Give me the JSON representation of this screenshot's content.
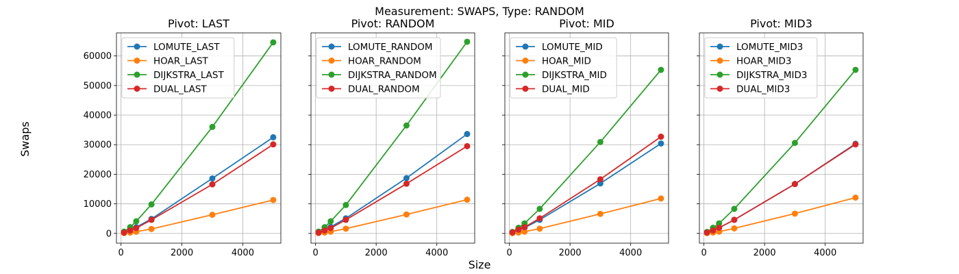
{
  "figure": {
    "suptitle": "Measurement: SWAPS, Type: RANDOM",
    "xlabel": "Size",
    "ylabel": "Swaps"
  },
  "colors": {
    "blue": "#1f77b4",
    "orange": "#ff7f0e",
    "green": "#2ca02c",
    "red": "#d62728",
    "grid": "#b0b0b0"
  },
  "chart_data": [
    {
      "type": "line",
      "title": "Pivot: LAST",
      "x": [
        100,
        300,
        500,
        1000,
        3000,
        5000
      ],
      "xlim": [
        -150,
        5250
      ],
      "ylim": [
        -3300,
        67800
      ],
      "xticks": [
        0,
        2000,
        4000
      ],
      "yticks": [
        0,
        10000,
        20000,
        30000,
        40000,
        50000,
        60000
      ],
      "grid": true,
      "legend": "upper left",
      "series": [
        {
          "name": "LOMUTE_LAST",
          "color": "#1f77b4",
          "values": [
            330,
            1200,
            2100,
            4900,
            18600,
            32500
          ]
        },
        {
          "name": "HOAR_LAST",
          "color": "#ff7f0e",
          "values": [
            90,
            280,
            560,
            1500,
            6300,
            11300
          ]
        },
        {
          "name": "DIJKSTRA_LAST",
          "color": "#2ca02c",
          "values": [
            600,
            2100,
            4100,
            9800,
            36000,
            64600
          ]
        },
        {
          "name": "DUAL_LAST",
          "color": "#d62728",
          "values": [
            300,
            1000,
            1800,
            4600,
            16600,
            30100
          ]
        }
      ]
    },
    {
      "type": "line",
      "title": "Pivot: RANDOM",
      "x": [
        100,
        300,
        500,
        1000,
        3000,
        5000
      ],
      "xlim": [
        -150,
        5250
      ],
      "ylim": [
        -3300,
        67800
      ],
      "xticks": [
        0,
        2000,
        4000
      ],
      "yticks": [
        0,
        10000,
        20000,
        30000,
        40000,
        50000,
        60000
      ],
      "grid": true,
      "legend": "upper left",
      "series": [
        {
          "name": "LOMUTE_RANDOM",
          "color": "#1f77b4",
          "values": [
            350,
            1200,
            2200,
            5100,
            18700,
            33600
          ]
        },
        {
          "name": "HOAR_RANDOM",
          "color": "#ff7f0e",
          "values": [
            90,
            290,
            580,
            1600,
            6400,
            11400
          ]
        },
        {
          "name": "DIJKSTRA_RANDOM",
          "color": "#2ca02c",
          "values": [
            600,
            2100,
            4100,
            9600,
            36500,
            64800
          ]
        },
        {
          "name": "DUAL_RANDOM",
          "color": "#d62728",
          "values": [
            300,
            1000,
            1800,
            4600,
            16800,
            29500
          ]
        }
      ]
    },
    {
      "type": "line",
      "title": "Pivot: MID",
      "x": [
        100,
        300,
        500,
        1000,
        3000,
        5000
      ],
      "xlim": [
        -150,
        5250
      ],
      "ylim": [
        -3300,
        67800
      ],
      "xticks": [
        0,
        2000,
        4000
      ],
      "yticks": [
        0,
        10000,
        20000,
        30000,
        40000,
        50000,
        60000
      ],
      "grid": true,
      "legend": "upper left",
      "series": [
        {
          "name": "LOMUTE_MID",
          "color": "#1f77b4",
          "values": [
            300,
            1100,
            1900,
            4600,
            16900,
            30400
          ]
        },
        {
          "name": "HOAR_MID",
          "color": "#ff7f0e",
          "values": [
            90,
            290,
            580,
            1600,
            6600,
            11800
          ]
        },
        {
          "name": "DIJKSTRA_MID",
          "color": "#2ca02c",
          "values": [
            500,
            1900,
            3400,
            8300,
            30900,
            55300
          ]
        },
        {
          "name": "DUAL_MID",
          "color": "#d62728",
          "values": [
            350,
            1300,
            2100,
            5100,
            18300,
            32700
          ]
        }
      ]
    },
    {
      "type": "line",
      "title": "Pivot: MID3",
      "x": [
        100,
        300,
        500,
        1000,
        3000,
        5000
      ],
      "xlim": [
        -150,
        5250
      ],
      "ylim": [
        -3300,
        67800
      ],
      "xticks": [
        0,
        2000,
        4000
      ],
      "yticks": [
        0,
        10000,
        20000,
        30000,
        40000,
        50000,
        60000
      ],
      "grid": true,
      "legend": "upper left",
      "series": [
        {
          "name": "LOMUTE_MID3",
          "color": "#1f77b4",
          "values": [
            300,
            1000,
            1900,
            4600,
            16700,
            30300
          ]
        },
        {
          "name": "HOAR_MID3",
          "color": "#ff7f0e",
          "values": [
            90,
            290,
            580,
            1700,
            6700,
            12100
          ]
        },
        {
          "name": "DIJKSTRA_MID3",
          "color": "#2ca02c",
          "values": [
            500,
            1900,
            3400,
            8300,
            30600,
            55300
          ]
        },
        {
          "name": "DUAL_MID3",
          "color": "#d62728",
          "values": [
            300,
            1000,
            1900,
            4600,
            16700,
            30100
          ]
        }
      ]
    }
  ]
}
